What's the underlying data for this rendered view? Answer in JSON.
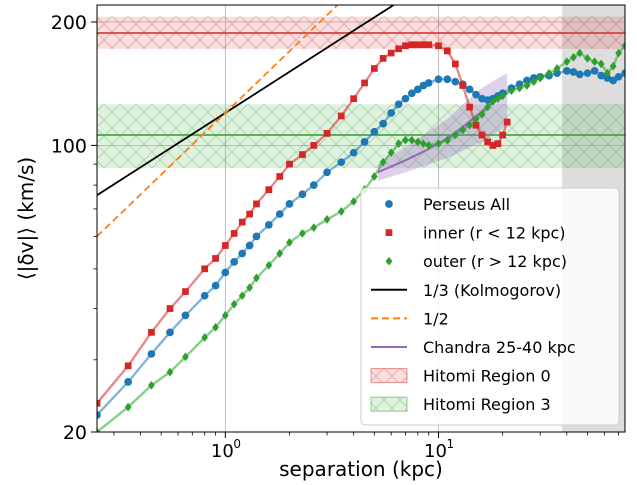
{
  "chart_data": {
    "type": "line",
    "xlabel": "separation (kpc)",
    "ylabel": "⟨|δv|⟩ (km/s)",
    "xscale": "log",
    "yscale": "log",
    "xlim": [
      0.25,
      75
    ],
    "ylim": [
      20,
      220
    ],
    "x_ticks": [
      {
        "value": 1,
        "base": "10",
        "exp": "0"
      },
      {
        "value": 10,
        "base": "10",
        "exp": "1"
      }
    ],
    "y_ticks": [
      {
        "value": 20,
        "label": "20"
      },
      {
        "value": 100,
        "label": "100"
      },
      {
        "value": 200,
        "label": "200"
      }
    ],
    "grid": true,
    "legend_position": "bottom-right",
    "shaded_region": {
      "x_from": 38,
      "x_to": 75,
      "color": "#d9d9d9"
    },
    "hitomi_bands": [
      {
        "name": "Hitomi Region 0",
        "y": 188,
        "y_low": 172,
        "y_high": 206,
        "color": "#d62728"
      },
      {
        "name": "Hitomi Region 3",
        "y": 106,
        "y_low": 88,
        "y_high": 126,
        "color": "#2ca02c"
      }
    ],
    "reference_lines": [
      {
        "name": "1/3 (Kolmogorov)",
        "slope": 0.3333,
        "y_at_1": 120,
        "color": "#000000",
        "style": "solid"
      },
      {
        "name": "1/2",
        "slope": 0.5,
        "y_at_1": 120,
        "color": "#ff7f0e",
        "style": "dashed"
      }
    ],
    "chandra": {
      "name": "Chandra 25-40 kpc",
      "color": "#9467bd",
      "x": [
        5.2,
        7.0,
        9.0,
        11.0,
        13.0,
        16.0,
        19.0,
        21.0
      ],
      "y": [
        86,
        92,
        98,
        104,
        111,
        121,
        130,
        134
      ],
      "y_low": [
        82,
        86,
        90,
        93,
        97,
        102,
        108,
        112
      ],
      "y_high": [
        90,
        99,
        108,
        116,
        126,
        138,
        146,
        150
      ]
    },
    "series": [
      {
        "name": "Perseus All",
        "color": "#1f77b4",
        "marker": "circle",
        "x": [
          0.25,
          0.35,
          0.45,
          0.55,
          0.65,
          0.8,
          0.9,
          1.0,
          1.1,
          1.2,
          1.3,
          1.4,
          1.6,
          1.8,
          2.0,
          2.3,
          2.6,
          3.0,
          3.5,
          4.0,
          4.5,
          5.0,
          5.5,
          6.0,
          6.5,
          7.0,
          7.5,
          8.0,
          8.5,
          9.0,
          10.0,
          11.0,
          12.0,
          13.0,
          14.0,
          15.0,
          16.0,
          17.0,
          18.0,
          19.0,
          20.0,
          22.0,
          24.0,
          26.0,
          28.0,
          30.0,
          33.0,
          36.0,
          40.0,
          43.0,
          46.0,
          50.0,
          54.0,
          58.0,
          62.0,
          66.0,
          70.0,
          75.0
        ],
        "y": [
          22,
          26.5,
          31,
          35,
          38.5,
          43,
          45.5,
          49,
          52,
          54.5,
          57,
          60,
          64,
          68,
          72,
          76,
          80,
          86,
          91,
          96,
          102,
          108,
          113,
          120,
          126,
          130,
          134,
          137,
          140,
          142,
          145,
          145,
          143,
          141,
          137,
          133,
          130,
          129,
          130,
          132,
          134,
          138,
          141,
          144,
          146,
          147,
          148,
          150,
          152,
          151,
          149,
          150,
          152,
          148,
          146,
          144,
          147,
          150
        ]
      },
      {
        "name": "inner (r < 12 kpc)",
        "color": "#d62728",
        "marker": "square",
        "x": [
          0.25,
          0.35,
          0.45,
          0.55,
          0.65,
          0.8,
          0.9,
          1.0,
          1.1,
          1.2,
          1.3,
          1.4,
          1.6,
          1.8,
          2.0,
          2.3,
          2.6,
          3.0,
          3.5,
          4.0,
          4.5,
          5.0,
          5.5,
          6.0,
          6.5,
          7.0,
          7.5,
          8.0,
          8.5,
          9.0,
          10.0,
          11.0,
          12.0,
          13.0,
          14.0,
          15.0,
          16.0,
          17.0,
          18.0,
          19.0,
          20.0,
          21.0
        ],
        "y": [
          23.5,
          29,
          35,
          40,
          44,
          50,
          53,
          57,
          61,
          65,
          68,
          72,
          78,
          84,
          90,
          95,
          100,
          107,
          118,
          130,
          142,
          154,
          163,
          168,
          172,
          175,
          176,
          176,
          176,
          176,
          175,
          170,
          158,
          140,
          124,
          112,
          106,
          102,
          100,
          101,
          106,
          114
        ]
      },
      {
        "name": "outer (r > 12 kpc)",
        "color": "#2ca02c",
        "marker": "diamond",
        "x": [
          0.25,
          0.35,
          0.45,
          0.55,
          0.65,
          0.8,
          0.9,
          1.0,
          1.1,
          1.2,
          1.3,
          1.4,
          1.6,
          1.8,
          2.0,
          2.3,
          2.6,
          3.0,
          3.5,
          4.0,
          4.5,
          5.0,
          5.5,
          6.0,
          6.5,
          7.0,
          7.5,
          8.0,
          8.5,
          9.0,
          10.0,
          11.0,
          12.0,
          13.0,
          14.0,
          15.0,
          16.0,
          17.0,
          18.0,
          19.0,
          20.0,
          22.0,
          24.0,
          26.0,
          28.0,
          30.0,
          33.0,
          36.0,
          40.0,
          43.0,
          46.0,
          50.0,
          54.0,
          58.0,
          62.0,
          66.0,
          70.0,
          75.0
        ],
        "y": [
          20,
          23,
          26,
          28,
          30.5,
          34,
          36,
          38.5,
          41,
          43,
          45,
          47.5,
          51,
          54.5,
          58,
          61,
          63,
          66,
          69,
          73,
          78,
          84,
          91,
          96,
          101,
          103,
          103,
          102,
          101,
          100,
          101,
          103,
          106,
          109,
          112,
          116,
          119,
          124,
          128,
          130,
          132,
          136,
          138,
          140,
          143,
          146,
          150,
          154,
          160,
          164,
          168,
          163,
          160,
          158,
          150,
          156,
          168,
          175
        ]
      }
    ],
    "legend": [
      {
        "label": "Perseus All",
        "kind": "marker",
        "marker": "circle",
        "color": "#1f77b4"
      },
      {
        "label": "inner (r < 12 kpc)",
        "kind": "marker",
        "marker": "square",
        "color": "#d62728"
      },
      {
        "label": "outer (r > 12 kpc)",
        "kind": "marker",
        "marker": "diamond",
        "color": "#2ca02c"
      },
      {
        "label": "1/3 (Kolmogorov)",
        "kind": "line",
        "color": "#000000",
        "dash": ""
      },
      {
        "label": "1/2",
        "kind": "line",
        "color": "#ff7f0e",
        "dash": "7,4"
      },
      {
        "label": "Chandra 25-40 kpc",
        "kind": "line",
        "color": "#9467bd",
        "dash": ""
      },
      {
        "label": "Hitomi Region 0",
        "kind": "patch",
        "color": "#d62728"
      },
      {
        "label": "Hitomi Region 3",
        "kind": "patch",
        "color": "#2ca02c"
      }
    ]
  }
}
